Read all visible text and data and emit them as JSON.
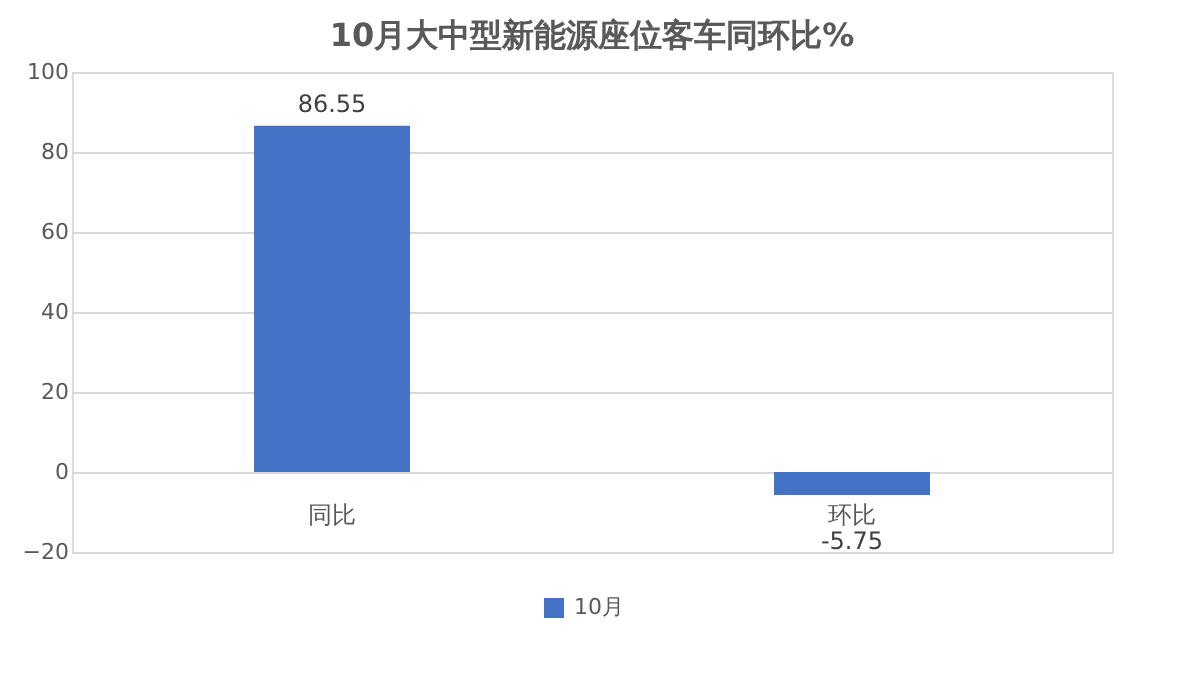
{
  "chart_data": {
    "type": "bar",
    "title": "10月大中型新能源座位客车同环比%",
    "categories": [
      "同比",
      "环比"
    ],
    "series": [
      {
        "name": "10月",
        "color": "#4472c4",
        "values": [
          86.55,
          -5.75
        ]
      }
    ],
    "ylim": [
      -20,
      100
    ],
    "yticks": [
      -20,
      0,
      20,
      40,
      60,
      80,
      100
    ],
    "grid": "y",
    "legend": "bottom",
    "data_labels": true
  }
}
